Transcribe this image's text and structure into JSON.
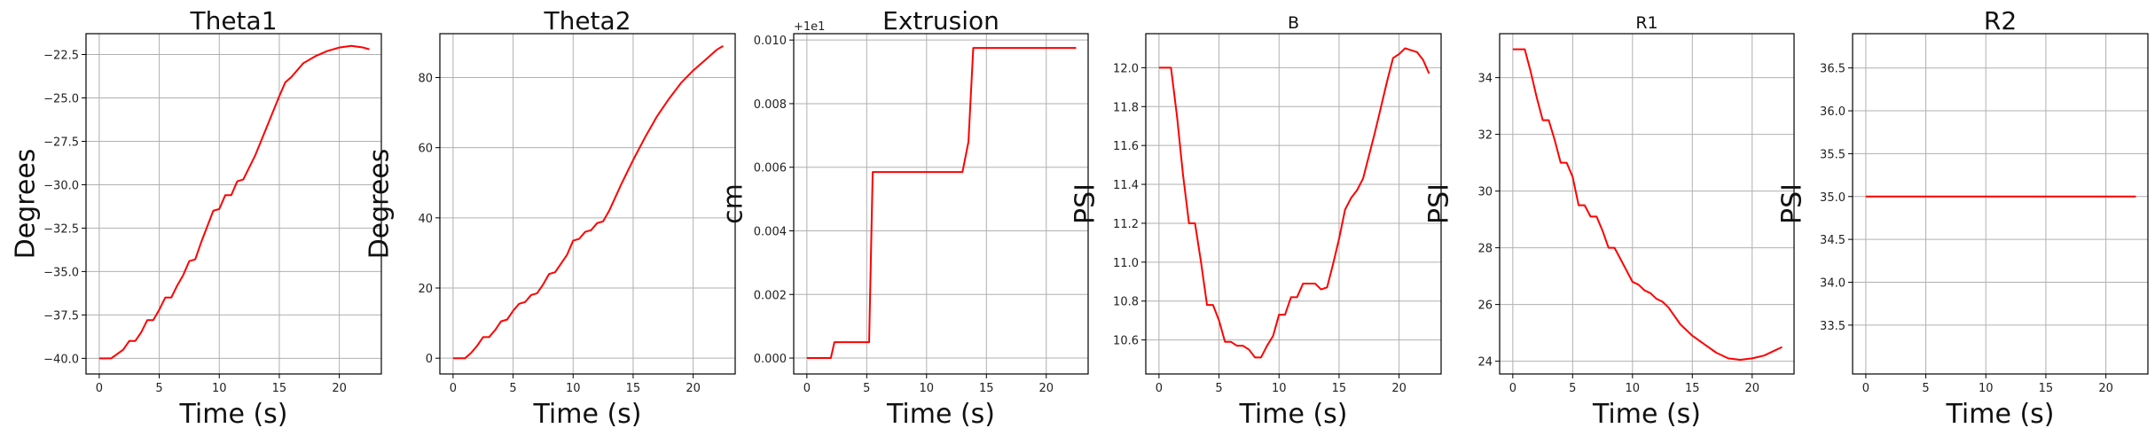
{
  "chart_data": [
    {
      "type": "line",
      "title": "Theta1",
      "xlabel": "Time (s)",
      "ylabel": "Degrees",
      "xlim": [
        -1.1,
        23.5
      ],
      "ylim": [
        -40.9,
        -21.3
      ],
      "xticks": [
        0,
        5,
        10,
        15,
        20
      ],
      "yticks": [
        -40.0,
        -37.5,
        -35.0,
        -32.5,
        -30.0,
        -27.5,
        -25.0,
        -22.5
      ],
      "ytick_labels": [
        "−40.0",
        "−37.5",
        "−35.0",
        "−32.5",
        "−30.0",
        "−27.5",
        "−25.0",
        "−22.5"
      ],
      "grid": true,
      "color": "#ff0000",
      "series": [
        {
          "x": [
            0,
            1,
            2,
            2.5,
            3,
            3.5,
            4,
            4.5,
            5,
            5.5,
            6,
            6.5,
            7,
            7.5,
            8,
            8.5,
            9,
            9.5,
            10,
            10.5,
            11,
            11.5,
            12,
            12.5,
            13,
            14,
            15,
            15.5,
            16,
            17,
            18,
            19,
            20,
            21,
            22,
            22.5
          ],
          "y": [
            -40.0,
            -40.0,
            -39.5,
            -39.0,
            -39.0,
            -38.5,
            -37.8,
            -37.8,
            -37.2,
            -36.5,
            -36.5,
            -35.8,
            -35.2,
            -34.4,
            -34.3,
            -33.3,
            -32.4,
            -31.5,
            -31.4,
            -30.6,
            -30.6,
            -29.8,
            -29.7,
            -29.0,
            -28.3,
            -26.6,
            -24.9,
            -24.1,
            -23.8,
            -23.0,
            -22.6,
            -22.3,
            -22.1,
            -22.0,
            -22.1,
            -22.2
          ]
        }
      ]
    },
    {
      "type": "line",
      "title": "Theta2",
      "xlabel": "Time (s)",
      "ylabel": "Degrees",
      "xlim": [
        -1.1,
        23.5
      ],
      "ylim": [
        -4.5,
        92.5
      ],
      "xticks": [
        0,
        5,
        10,
        15,
        20
      ],
      "yticks": [
        0,
        20,
        40,
        60,
        80
      ],
      "ytick_labels": [
        "0",
        "20",
        "40",
        "60",
        "80"
      ],
      "grid": true,
      "color": "#ff0000",
      "series": [
        {
          "x": [
            0,
            1,
            1.5,
            2,
            2.5,
            3,
            3.5,
            4,
            4.5,
            5,
            5.5,
            6,
            6.5,
            7,
            7.5,
            8,
            8.5,
            9,
            9.5,
            10,
            10.5,
            11,
            11.5,
            12,
            12.5,
            13,
            14,
            15,
            16,
            17,
            18,
            19,
            20,
            21,
            22,
            22.5
          ],
          "y": [
            0,
            0,
            1.5,
            3.5,
            6,
            6,
            8,
            10.5,
            11,
            13.5,
            15.5,
            16,
            18,
            18.5,
            21,
            24,
            24.5,
            27,
            29.5,
            33.5,
            34,
            36,
            36.5,
            38.5,
            39,
            42,
            49.5,
            56.5,
            63,
            69,
            74,
            78.5,
            82,
            85,
            88,
            89
          ]
        }
      ]
    },
    {
      "type": "line",
      "title": "Extrusion",
      "xlabel": "Time (s)",
      "ylabel": "cm",
      "offset_text": "+1e1",
      "xlim": [
        -1.1,
        23.5
      ],
      "ylim": [
        -0.0005,
        0.0102
      ],
      "xticks": [
        0,
        5,
        10,
        15,
        20
      ],
      "yticks": [
        0.0,
        0.002,
        0.004,
        0.006,
        0.008,
        0.01
      ],
      "ytick_labels": [
        "0.000",
        "0.002",
        "0.004",
        "0.006",
        "0.008",
        "0.010"
      ],
      "grid": true,
      "color": "#ff0000",
      "series": [
        {
          "x": [
            0,
            2.0,
            2.3,
            5.2,
            5.5,
            13.0,
            13.5,
            13.9,
            22.5
          ],
          "y": [
            0,
            0,
            0.0005,
            0.0005,
            0.00585,
            0.00585,
            0.0068,
            0.00975,
            0.00975
          ]
        }
      ]
    },
    {
      "type": "line",
      "title": "B",
      "xlabel": "Time (s)",
      "ylabel": "PSI",
      "xlim": [
        -1.1,
        23.5
      ],
      "ylim": [
        10.425,
        12.175
      ],
      "xticks": [
        0,
        5,
        10,
        15,
        20
      ],
      "yticks": [
        10.6,
        10.8,
        11.0,
        11.2,
        11.4,
        11.6,
        11.8,
        12.0
      ],
      "ytick_labels": [
        "10.6",
        "10.8",
        "11.0",
        "11.2",
        "11.4",
        "11.6",
        "11.8",
        "12.0"
      ],
      "grid": true,
      "color": "#ff0000",
      "series": [
        {
          "x": [
            0,
            1,
            1.5,
            2,
            2.5,
            3,
            3.5,
            4,
            4.5,
            5,
            5.5,
            6,
            6.5,
            7,
            7.5,
            8,
            8.5,
            9,
            9.5,
            10,
            10.5,
            11,
            11.5,
            12,
            12.5,
            13,
            13.5,
            14,
            14.5,
            15,
            15.5,
            16,
            16.5,
            17,
            17.5,
            18,
            18.5,
            19,
            19.5,
            20,
            20.5,
            21,
            21.5,
            22,
            22.5
          ],
          "y": [
            12.0,
            12.0,
            11.75,
            11.45,
            11.2,
            11.2,
            11.0,
            10.78,
            10.78,
            10.7,
            10.59,
            10.59,
            10.57,
            10.57,
            10.55,
            10.51,
            10.51,
            10.57,
            10.62,
            10.73,
            10.73,
            10.82,
            10.82,
            10.89,
            10.89,
            10.89,
            10.86,
            10.87,
            10.99,
            11.12,
            11.27,
            11.33,
            11.37,
            11.43,
            11.55,
            11.67,
            11.8,
            11.93,
            12.05,
            12.07,
            12.1,
            12.09,
            12.08,
            12.04,
            11.97
          ]
        }
      ]
    },
    {
      "type": "line",
      "title": "R1",
      "xlabel": "Time (s)",
      "ylabel": "PSI",
      "xlim": [
        -1.1,
        23.5
      ],
      "ylim": [
        23.55,
        35.55
      ],
      "xticks": [
        0,
        5,
        10,
        15,
        20
      ],
      "yticks": [
        24,
        26,
        28,
        30,
        32,
        34
      ],
      "ytick_labels": [
        "24",
        "26",
        "28",
        "30",
        "32",
        "34"
      ],
      "grid": true,
      "color": "#ff0000",
      "series": [
        {
          "x": [
            0,
            1,
            1.5,
            2,
            2.5,
            3,
            3.5,
            4,
            4.5,
            5,
            5.5,
            6,
            6.5,
            7,
            7.5,
            8,
            8.5,
            9,
            9.5,
            10,
            10.5,
            11,
            11.5,
            12,
            12.5,
            13,
            14,
            15,
            16,
            17,
            18,
            19,
            20,
            21,
            22,
            22.5
          ],
          "y": [
            35.0,
            35.0,
            34.2,
            33.3,
            32.5,
            32.5,
            31.8,
            31.0,
            31.0,
            30.5,
            29.5,
            29.5,
            29.1,
            29.1,
            28.6,
            28.0,
            28.0,
            27.6,
            27.2,
            26.8,
            26.7,
            26.5,
            26.4,
            26.2,
            26.1,
            25.9,
            25.3,
            24.9,
            24.6,
            24.3,
            24.1,
            24.05,
            24.1,
            24.2,
            24.4,
            24.5
          ]
        }
      ]
    },
    {
      "type": "line",
      "title": "R2",
      "xlabel": "Time (s)",
      "ylabel": "PSI",
      "xlim": [
        -1.1,
        23.5
      ],
      "ylim": [
        32.93,
        36.9
      ],
      "xticks": [
        0,
        5,
        10,
        15,
        20
      ],
      "yticks": [
        33.5,
        34.0,
        34.5,
        35.0,
        35.5,
        36.0,
        36.5
      ],
      "ytick_labels": [
        "33.5",
        "34.0",
        "34.5",
        "35.0",
        "35.5",
        "36.0",
        "36.5"
      ],
      "grid": true,
      "color": "#ff0000",
      "series": [
        {
          "x": [
            0,
            22.5
          ],
          "y": [
            35.0,
            35.0
          ]
        }
      ]
    }
  ]
}
